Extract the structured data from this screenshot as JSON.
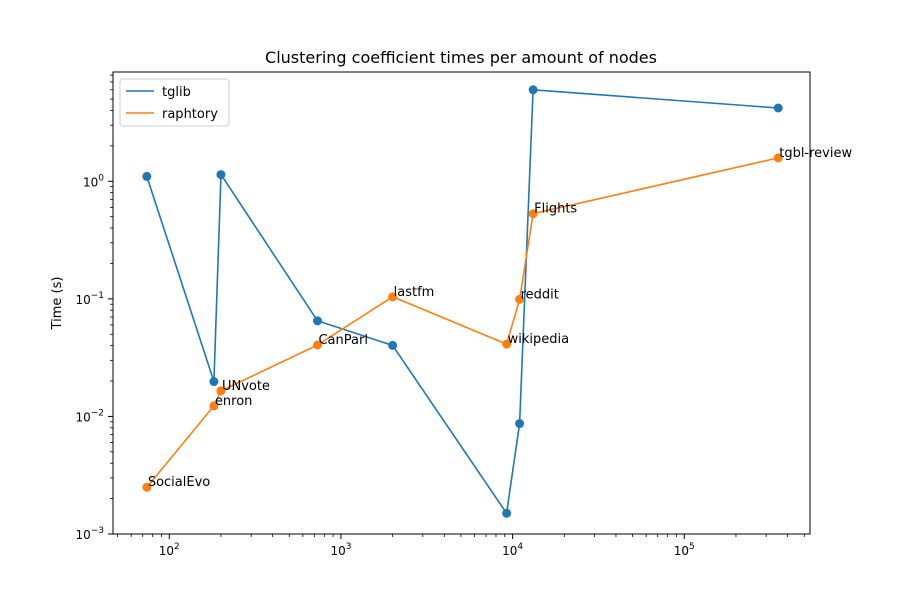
{
  "chart_data": {
    "type": "line",
    "title": "Clustering coefficient times per amount of nodes",
    "xlabel": "",
    "ylabel": "Time (s)",
    "xscale": "log",
    "yscale": "log",
    "xlim": [
      47,
      540000
    ],
    "ylim": [
      0.001,
      8.5
    ],
    "x_ticks": [
      {
        "value": 100,
        "base": "10",
        "exp": "2"
      },
      {
        "value": 1000,
        "base": "10",
        "exp": "3"
      },
      {
        "value": 10000,
        "base": "10",
        "exp": "4"
      },
      {
        "value": 100000,
        "base": "10",
        "exp": "5"
      }
    ],
    "y_ticks": [
      {
        "value": 0.001,
        "base": "10",
        "exp": "−3"
      },
      {
        "value": 0.01,
        "base": "10",
        "exp": "−2"
      },
      {
        "value": 0.1,
        "base": "10",
        "exp": "−1"
      },
      {
        "value": 1,
        "base": "10",
        "exp": "0"
      }
    ],
    "grid": false,
    "legend_position": "top-left",
    "series": [
      {
        "name": "tglib",
        "color": "#1f77b4",
        "points": [
          {
            "x": 74,
            "y": 1.1
          },
          {
            "x": 182,
            "y": 0.0198
          },
          {
            "x": 200,
            "y": 1.14
          },
          {
            "x": 730,
            "y": 0.065
          },
          {
            "x": 2000,
            "y": 0.0402
          },
          {
            "x": 9230,
            "y": 0.0015
          },
          {
            "x": 10980,
            "y": 0.0087
          },
          {
            "x": 13170,
            "y": 6.0
          },
          {
            "x": 352600,
            "y": 4.2
          }
        ]
      },
      {
        "name": "raphtory",
        "color": "#ff7f0e",
        "points": [
          {
            "x": 74,
            "y": 0.0025,
            "label": "SocialEvo"
          },
          {
            "x": 182,
            "y": 0.0123,
            "label": "enron"
          },
          {
            "x": 200,
            "y": 0.0165,
            "label": "UNvote"
          },
          {
            "x": 730,
            "y": 0.0405,
            "label": "CanParl"
          },
          {
            "x": 2000,
            "y": 0.104,
            "label": "lastfm"
          },
          {
            "x": 9230,
            "y": 0.0412,
            "label": "wikipedia"
          },
          {
            "x": 10980,
            "y": 0.099,
            "label": "reddit"
          },
          {
            "x": 13170,
            "y": 0.53,
            "label": "Flights"
          },
          {
            "x": 352600,
            "y": 1.58,
            "label": "tgbl-review"
          }
        ]
      }
    ]
  }
}
